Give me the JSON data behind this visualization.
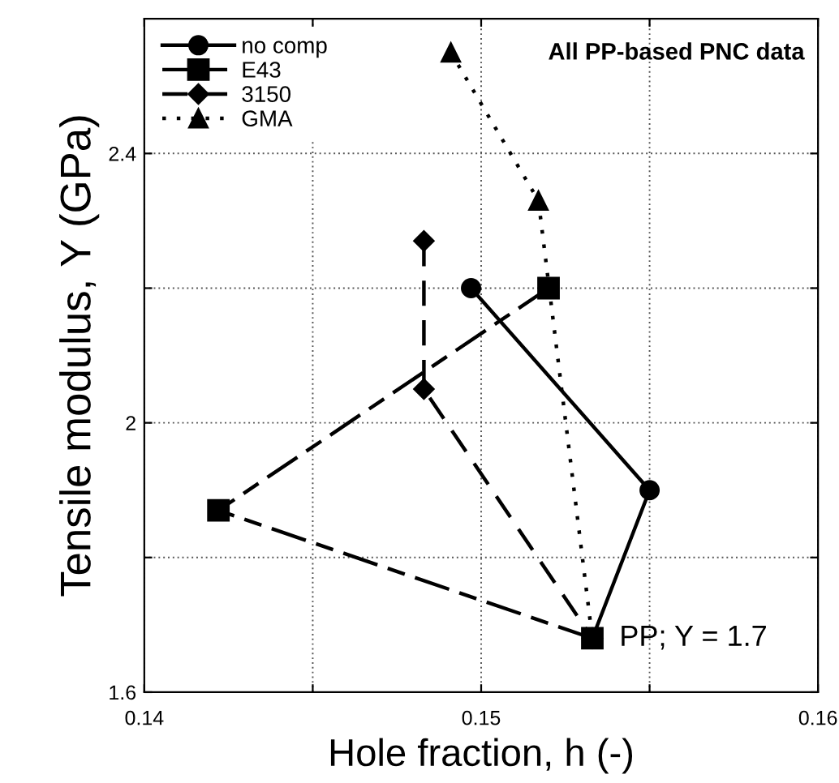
{
  "chart_data": {
    "type": "line",
    "xlabel": "Hole fraction, h (-)",
    "ylabel": "Tensile modulus, Y (GPa)",
    "xlim": [
      0.14,
      0.16
    ],
    "ylim": [
      1.6,
      2.6
    ],
    "xticks": [
      0.14,
      {
        "value": 0.145,
        "label": null
      },
      0.15,
      {
        "value": 0.155,
        "label": null
      },
      0.16
    ],
    "yticks": [
      1.6,
      {
        "value": 1.8,
        "label": null
      },
      2,
      {
        "value": 2.2,
        "label": null
      },
      2.4
    ],
    "grid": true,
    "legend": "top left",
    "annotations": [
      "All PP-based PNC data",
      {
        "text": "PP; Y = 1.7",
        "x": 0.1533,
        "y": 1.68
      }
    ],
    "series": [
      {
        "name": "no comp",
        "color": "#000000",
        "marker": "circle",
        "line_style": "solid",
        "x": [
          0.1497,
          0.155,
          0.1533
        ],
        "values": [
          2.2,
          1.9,
          1.68
        ]
      },
      {
        "name": "E43",
        "color": "#000000",
        "marker": "square",
        "line_style": "dashdot",
        "x": [
          0.152,
          0.1422,
          0.1533
        ],
        "values": [
          2.2,
          1.87,
          1.68
        ]
      },
      {
        "name": "3150",
        "color": "#000000",
        "marker": "diamond",
        "line_style": "dashed",
        "x": [
          0.1483,
          0.1483,
          0.1533
        ],
        "values": [
          2.27,
          2.05,
          1.68
        ]
      },
      {
        "name": "GMA",
        "color": "#000000",
        "marker": "triangle",
        "line_style": "dotted",
        "x": [
          0.1491,
          0.1517,
          0.1533
        ],
        "values": [
          2.55,
          2.33,
          1.68
        ]
      }
    ]
  }
}
